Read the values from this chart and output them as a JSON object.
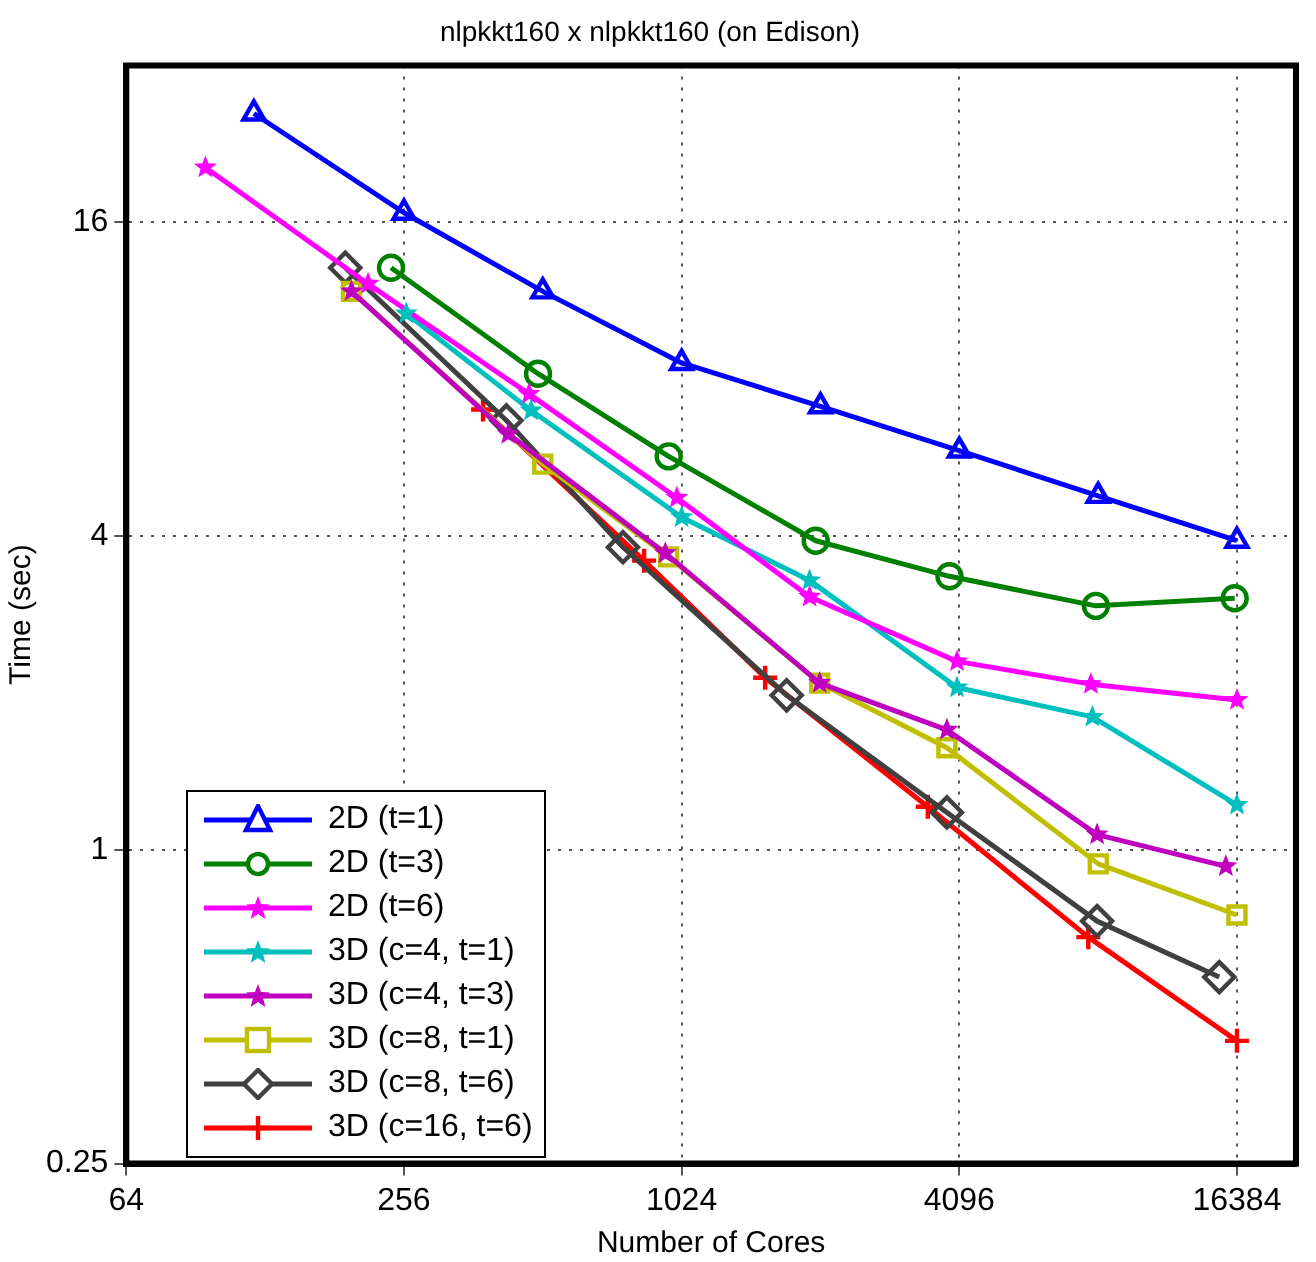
{
  "chart_data": {
    "type": "line",
    "title": "nlpkkt160 x nlpkkt160 (on Edison)",
    "xlabel": "Number of Cores",
    "ylabel": "Time (sec)",
    "log": "xy",
    "xlim": [
      64,
      22000
    ],
    "ylim": [
      0.25,
      32
    ],
    "xticks": [
      64,
      256,
      1024,
      4096,
      16384
    ],
    "yticks": [
      0.25,
      1,
      4,
      16
    ],
    "grid": true,
    "legend": "bottom left",
    "line_style": "solid",
    "series": [
      {
        "name": "2D (t=1)",
        "color": "#0000ff",
        "marker": "triangle",
        "x": [
          121,
          256,
          512,
          1024,
          2048,
          4096,
          8192,
          16384
        ],
        "values": [
          25.9,
          16.7,
          11.8,
          8.6,
          7.1,
          5.84,
          4.78,
          3.92
        ]
      },
      {
        "name": "2D (t=3)",
        "color": "#008000",
        "marker": "circle",
        "x": [
          240,
          500,
          960,
          2000,
          3900,
          8100,
          16200
        ],
        "values": [
          13.1,
          8.2,
          5.69,
          3.92,
          3.35,
          2.94,
          3.04
        ]
      },
      {
        "name": "2D (t=6)",
        "color": "#ff00ff",
        "marker": "star",
        "x": [
          95,
          214,
          478,
          1000,
          1940,
          4050,
          7900,
          16384
        ],
        "values": [
          20.4,
          12.2,
          7.5,
          4.74,
          3.06,
          2.3,
          2.08,
          1.94
        ]
      },
      {
        "name": "3D (c=4, t=1)",
        "color": "#00bfbf",
        "marker": "star",
        "x": [
          259,
          483,
          1024,
          1940,
          4050,
          7960,
          16384
        ],
        "values": [
          10.7,
          6.97,
          4.35,
          3.29,
          2.05,
          1.8,
          1.22
        ]
      },
      {
        "name": "3D (c=4, t=3)",
        "color": "#bf00bf",
        "marker": "star",
        "x": [
          197,
          431,
          944,
          2040,
          3850,
          8150,
          15500
        ],
        "values": [
          11.8,
          6.28,
          3.71,
          2.09,
          1.7,
          1.07,
          0.93
        ]
      },
      {
        "name": "3D (c=8, t=1)",
        "color": "#bfbf00",
        "marker": "square",
        "x": [
          197,
          512,
          960,
          2040,
          3850,
          8200,
          16384
        ],
        "values": [
          11.8,
          5.5,
          3.65,
          2.09,
          1.57,
          0.94,
          0.75
        ]
      },
      {
        "name": "3D (c=8, t=6)",
        "color": "#404040",
        "marker": "diamond",
        "x": [
          191,
          427,
          764,
          1730,
          3850,
          8150,
          15000
        ],
        "values": [
          13.1,
          6.67,
          3.81,
          1.98,
          1.18,
          0.73,
          0.57
        ]
      },
      {
        "name": "3D (c=16, t=6)",
        "color": "#ff0000",
        "marker": "cross",
        "x": [
          380,
          849,
          1554,
          3500,
          7800,
          16384
        ],
        "values": [
          7.0,
          3.59,
          2.14,
          1.21,
          0.68,
          0.43
        ]
      }
    ]
  }
}
